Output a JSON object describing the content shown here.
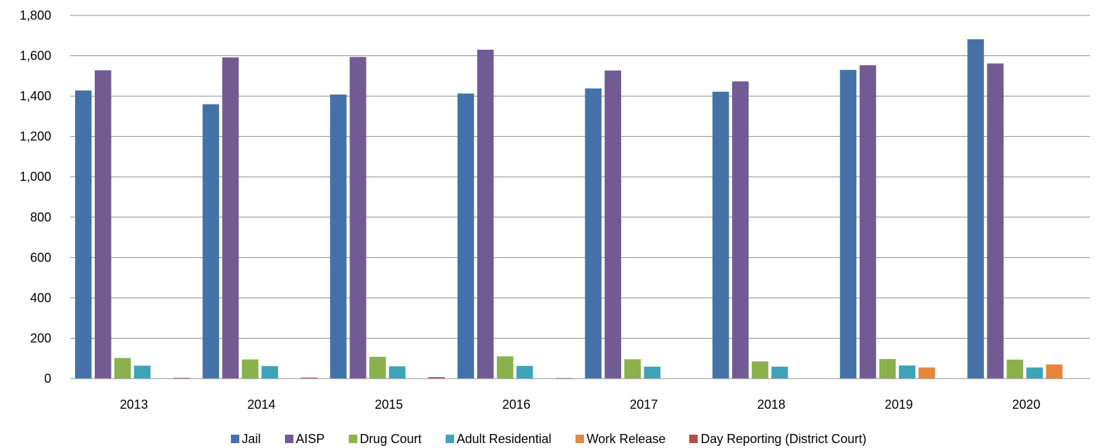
{
  "chart_data": {
    "type": "bar",
    "categories": [
      "2013",
      "2014",
      "2015",
      "2016",
      "2017",
      "2018",
      "2019",
      "2020"
    ],
    "series": [
      {
        "name": "Jail",
        "color": "#4472a8",
        "values": [
          1428,
          1360,
          1408,
          1413,
          1438,
          1422,
          1530,
          1682
        ]
      },
      {
        "name": "AISP",
        "color": "#725a92",
        "values": [
          1528,
          1592,
          1594,
          1630,
          1527,
          1473,
          1553,
          1562
        ]
      },
      {
        "name": "Drug Court",
        "color": "#8ab14c",
        "values": [
          102,
          95,
          108,
          110,
          96,
          85,
          97,
          94
        ]
      },
      {
        "name": "Adult Residential",
        "color": "#3fa3b8",
        "values": [
          64,
          62,
          61,
          63,
          59,
          59,
          65,
          55
        ]
      },
      {
        "name": "Work Release",
        "color": "#e5863a",
        "values": [
          0,
          0,
          0,
          0,
          0,
          0,
          55,
          70
        ]
      },
      {
        "name": "Day Reporting (District Court)",
        "color": "#b84a47",
        "values": [
          4,
          5,
          7,
          3,
          0,
          0,
          0,
          0
        ]
      }
    ],
    "yticks": [
      "0",
      "200",
      "400",
      "600",
      "800",
      "1,000",
      "1,200",
      "1,400",
      "1,600",
      "1,800"
    ],
    "ylim": [
      0,
      1800
    ],
    "grid": true,
    "legend_position": "bottom"
  }
}
